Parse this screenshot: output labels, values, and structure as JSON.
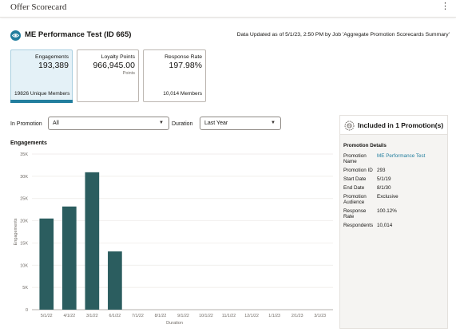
{
  "app": {
    "title": "Offer Scorecard",
    "menu_icon": "kebab-vertical-icon"
  },
  "header": {
    "icon": "eye-icon",
    "title": "ME Performance Test (ID 665)",
    "updated": "Data Updated as of 5/1/23, 2:50 PM by Job 'Aggregate Promotion Scorecards Summary'"
  },
  "tiles": [
    {
      "label": "Engagements",
      "value": "193,389",
      "sub": "",
      "bottom": "19826 Unique Members",
      "selected": true
    },
    {
      "label": "Loyalty Points",
      "value": "966,945.00",
      "sub": "Points",
      "bottom": "",
      "selected": false
    },
    {
      "label": "Response Rate",
      "value": "197.98%",
      "sub": "",
      "bottom": "10,014 Members",
      "selected": false
    }
  ],
  "filters": {
    "promotion_label": "In Promotion",
    "promotion_value": "All",
    "duration_label": "Duration",
    "duration_value": "Last Year"
  },
  "chart_title": "Engagements",
  "chart_data": {
    "type": "bar",
    "title": "Engagements",
    "xlabel": "Duration",
    "ylabel": "Engagements",
    "categories": [
      "5/1/22",
      "4/1/22",
      "3/1/22",
      "6/1/22",
      "7/1/22",
      "8/1/22",
      "9/1/22",
      "10/1/22",
      "11/1/22",
      "12/1/22",
      "1/1/23",
      "2/1/23",
      "3/1/23"
    ],
    "values": [
      20500,
      23200,
      30900,
      13100,
      0,
      0,
      0,
      0,
      0,
      0,
      0,
      0,
      0
    ],
    "ylim": [
      0,
      35000
    ],
    "yticks": [
      0,
      5000,
      10000,
      15000,
      20000,
      25000,
      30000,
      35000
    ],
    "ytick_labels": [
      "0",
      "5K",
      "10K",
      "15K",
      "20K",
      "25K",
      "30K",
      "35K"
    ],
    "grid": true,
    "bar_color": "#2b5d5f"
  },
  "panel": {
    "icon": "gear-badge-icon",
    "title": "Included in 1 Promotion(s)",
    "details_title": "Promotion Details",
    "rows": [
      {
        "key": "Promotion Name",
        "value": "ME Performance Test",
        "link": true
      },
      {
        "key": "Promotion ID",
        "value": "293",
        "link": false
      },
      {
        "key": "Start Date",
        "value": "5/1/19",
        "link": false
      },
      {
        "key": "End Date",
        "value": "8/1/30",
        "link": false
      },
      {
        "key": "Promotion Audience",
        "value": "Exclusive",
        "link": false
      },
      {
        "key": "Response Rate",
        "value": "100.12%",
        "link": false
      },
      {
        "key": "Respondents",
        "value": "10,014",
        "link": false
      }
    ]
  },
  "colors": {
    "accent": "#227e9e",
    "bar": "#2b5d5f",
    "panel_bg": "#f5f4f2"
  }
}
